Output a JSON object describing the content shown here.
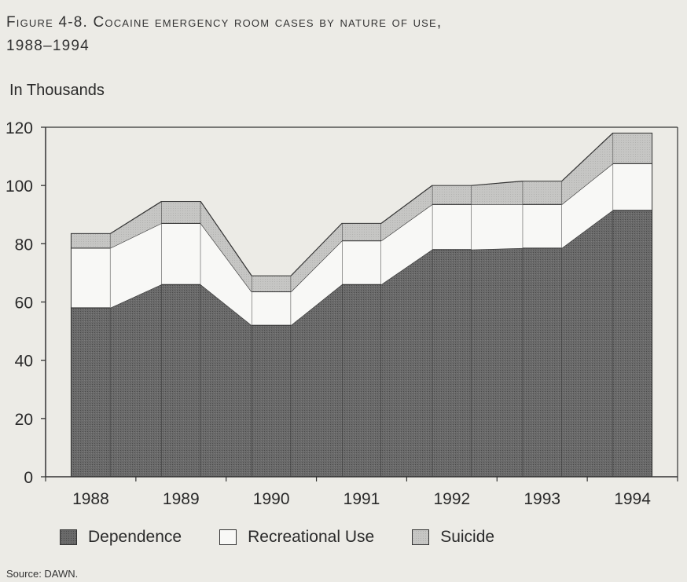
{
  "title_line1": "Figure 4-8. Cocaine emergency room cases by nature of use,",
  "title_line2": "1988–1994",
  "units_label": "In Thousands",
  "source": "Source: DAWN.",
  "colors": {
    "dependence": "#6a6a6a",
    "recreational": "#f8f8f6",
    "suicide": "#c6c6c4",
    "stroke": "#333333",
    "background": "#ecebe6"
  },
  "chart_data": {
    "type": "bar",
    "stacked": true,
    "connected_outline": true,
    "categories": [
      "1988",
      "1989",
      "1990",
      "1991",
      "1992",
      "1993",
      "1994"
    ],
    "series": [
      {
        "name": "Dependence",
        "values": [
          58,
          66,
          52,
          66,
          78,
          78.5,
          91.5
        ]
      },
      {
        "name": "Recreational Use",
        "values": [
          20.5,
          21,
          11.5,
          15,
          15.5,
          15,
          16
        ]
      },
      {
        "name": "Suicide",
        "values": [
          5,
          7.5,
          5.5,
          6,
          6.5,
          8,
          10.5
        ]
      }
    ],
    "ylim": [
      0,
      120
    ],
    "yticks": [
      0,
      20,
      40,
      60,
      80,
      100,
      120
    ],
    "xlabel": "",
    "ylabel": "In Thousands",
    "grid": false,
    "legend_position": "bottom"
  }
}
